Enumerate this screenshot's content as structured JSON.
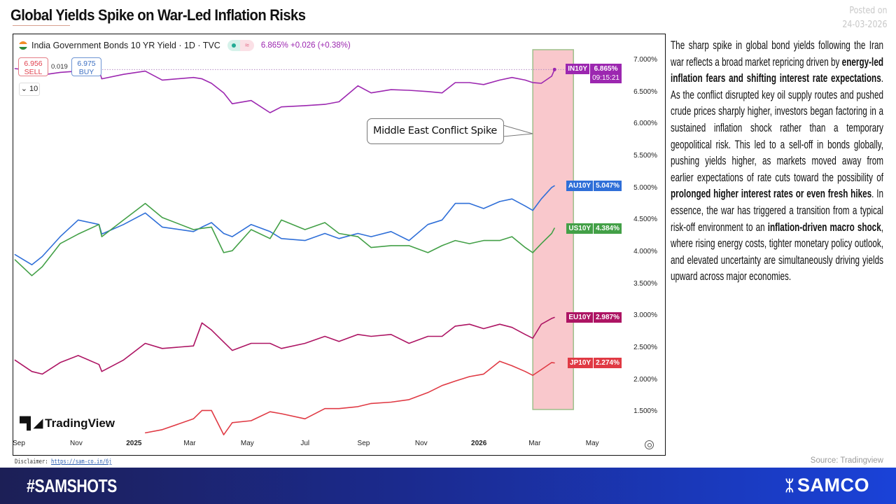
{
  "title": "Global Yields Spike on War-Led Inflation Risks",
  "posted": {
    "label": "Posted on",
    "date": "24-03-2026"
  },
  "chart_header": {
    "symbol_title": "India Government Bonds 10 YR Yield · 1D · TVC",
    "quote": "6.865% +0.026 (+0.38%)",
    "sell_price": "6.956",
    "sell_label": "SELL",
    "spread": "0.019",
    "buy_price": "6.975",
    "buy_label": "BUY",
    "interval_toggle": "10",
    "status_icons": [
      "market-open-dot-icon",
      "approx-icon"
    ]
  },
  "annotation": "Middle East Conflict Spike",
  "tradingview_logo": "TradingView",
  "last_time": "09:15:21",
  "chart_data": {
    "type": "line",
    "title": "",
    "xlabel": "",
    "ylabel": "",
    "x_ticks": [
      {
        "date": "2024-09-01",
        "label": "Sep",
        "year": false
      },
      {
        "date": "2024-11-01",
        "label": "Nov",
        "year": false
      },
      {
        "date": "2025-01-01",
        "label": "2025",
        "year": true
      },
      {
        "date": "2025-03-01",
        "label": "Mar",
        "year": false
      },
      {
        "date": "2025-05-01",
        "label": "May",
        "year": false
      },
      {
        "date": "2025-07-01",
        "label": "Jul",
        "year": false
      },
      {
        "date": "2025-09-01",
        "label": "Sep",
        "year": false
      },
      {
        "date": "2025-11-01",
        "label": "Nov",
        "year": false
      },
      {
        "date": "2026-01-01",
        "label": "2026",
        "year": true
      },
      {
        "date": "2026-03-01",
        "label": "Mar",
        "year": false
      },
      {
        "date": "2026-05-01",
        "label": "May",
        "year": false
      }
    ],
    "y_ticks": [
      "1.500%",
      "2.000%",
      "2.500%",
      "3.000%",
      "3.500%",
      "4.000%",
      "4.500%",
      "5.000%",
      "5.500%",
      "6.000%",
      "6.500%",
      "7.000%"
    ],
    "y_tick_values": [
      1.5,
      2.0,
      2.5,
      3.0,
      3.5,
      4.0,
      4.5,
      5.0,
      5.5,
      6.0,
      6.5,
      7.0
    ],
    "ylim": [
      1.0,
      7.15
    ],
    "xlim": [
      "2024-08-27",
      "2026-05-31"
    ],
    "grid": false,
    "legend": "right-axis-badges",
    "highlight_range": {
      "start": "2026-02-27",
      "end": "2026-04-11",
      "fill": "#f9c8cc",
      "border": "#9dbf8a"
    },
    "x": [
      "2024-08-28",
      "2024-09-15",
      "2024-09-26",
      "2024-10-15",
      "2024-11-03",
      "2024-11-25",
      "2024-11-28",
      "2024-12-21",
      "2025-01-13",
      "2025-01-31",
      "2025-03-05",
      "2025-03-14",
      "2025-03-24",
      "2025-04-06",
      "2025-04-15",
      "2025-05-05",
      "2025-05-25",
      "2025-06-06",
      "2025-07-01",
      "2025-07-22",
      "2025-08-06",
      "2025-08-26",
      "2025-09-09",
      "2025-09-30",
      "2025-10-19",
      "2025-11-08",
      "2025-11-23",
      "2025-12-07",
      "2025-12-22",
      "2026-01-06",
      "2026-01-23",
      "2026-02-05",
      "2026-02-19",
      "2026-02-27",
      "2026-03-08",
      "2026-03-19",
      "2026-03-22"
    ],
    "series": [
      {
        "name": "IN10Y",
        "last": "6.865%",
        "color": "#9c27b0",
        "values": [
          6.88,
          6.85,
          6.78,
          6.82,
          6.84,
          6.86,
          6.72,
          6.79,
          6.84,
          6.7,
          6.74,
          6.72,
          6.65,
          6.5,
          6.33,
          6.38,
          6.19,
          6.28,
          6.3,
          6.32,
          6.36,
          6.61,
          6.5,
          6.55,
          6.54,
          6.52,
          6.5,
          6.66,
          6.66,
          6.63,
          6.7,
          6.74,
          6.7,
          6.66,
          6.65,
          6.76,
          6.865
        ]
      },
      {
        "name": "AU10Y",
        "last": "5.047%",
        "color": "#2f6fd8",
        "values": [
          3.97,
          3.81,
          3.94,
          4.25,
          4.51,
          4.44,
          4.29,
          4.44,
          4.62,
          4.4,
          4.33,
          4.4,
          4.47,
          4.3,
          4.25,
          4.44,
          4.33,
          4.22,
          4.19,
          4.3,
          4.22,
          4.3,
          4.25,
          4.33,
          4.19,
          4.44,
          4.51,
          4.77,
          4.77,
          4.69,
          4.8,
          4.84,
          4.73,
          4.66,
          4.84,
          5.02,
          5.047
        ]
      },
      {
        "name": "US10Y",
        "last": "4.384%",
        "color": "#43a047",
        "values": [
          3.89,
          3.64,
          3.78,
          4.14,
          4.29,
          4.44,
          4.25,
          4.51,
          4.77,
          4.55,
          4.36,
          4.38,
          4.4,
          4.0,
          4.03,
          4.36,
          4.22,
          4.51,
          4.36,
          4.47,
          4.3,
          4.25,
          4.08,
          4.11,
          4.11,
          4.0,
          4.11,
          4.19,
          4.14,
          4.19,
          4.19,
          4.25,
          4.08,
          4.0,
          4.14,
          4.3,
          4.384
        ]
      },
      {
        "name": "EU10Y",
        "last": "2.987%",
        "color": "#ad1463",
        "values": [
          2.32,
          2.14,
          2.1,
          2.28,
          2.39,
          2.25,
          2.14,
          2.32,
          2.58,
          2.5,
          2.54,
          2.9,
          2.79,
          2.6,
          2.47,
          2.58,
          2.58,
          2.5,
          2.58,
          2.69,
          2.61,
          2.72,
          2.69,
          2.72,
          2.58,
          2.69,
          2.69,
          2.85,
          2.88,
          2.81,
          2.88,
          2.83,
          2.72,
          2.66,
          2.88,
          2.97,
          2.987
        ]
      },
      {
        "name": "JP10Y",
        "last": "2.274%",
        "color": "#e03a44",
        "values": [
          null,
          null,
          null,
          null,
          null,
          null,
          null,
          null,
          1.18,
          1.23,
          1.4,
          1.53,
          1.53,
          1.15,
          1.34,
          1.37,
          1.51,
          1.48,
          1.4,
          1.56,
          1.56,
          1.59,
          1.64,
          1.66,
          1.7,
          1.81,
          1.92,
          1.99,
          2.06,
          2.1,
          2.3,
          2.23,
          2.14,
          2.08,
          2.17,
          2.28,
          2.274
        ]
      }
    ]
  },
  "body_text": [
    {
      "text": "The sharp spike in global bond yields following the Iran war reflects a broad market repricing driven by ",
      "bold": false
    },
    {
      "text": "energy-led inflation fears and shifting interest rate expectations",
      "bold": true
    },
    {
      "text": ". As the conflict disrupted key oil supply routes and pushed crude prices sharply higher, investors began factoring in a sustained inflation shock rather than a temporary geopolitical risk. This led to a sell-off in bonds globally, pushing yields higher, as markets moved away from earlier expectations of rate cuts toward the possibility of ",
      "bold": false
    },
    {
      "text": "prolonged higher interest rates or even fresh hikes",
      "bold": true
    },
    {
      "text": ". In essence, the war has triggered a transition from a typical risk-off environment to an ",
      "bold": false
    },
    {
      "text": "inflation-driven macro shock",
      "bold": true
    },
    {
      "text": ", where rising energy costs, tighter monetary policy outlook, and elevated uncertainty are simultaneously driving yields upward across major economies.",
      "bold": false
    }
  ],
  "source": "Source: Tradingview",
  "disclaimer": {
    "label": "Disclaimer:",
    "link": "https://sam-co.in/6j"
  },
  "footer": {
    "hashtag": "#SAMSHOTS",
    "brand": "SAMCO"
  }
}
